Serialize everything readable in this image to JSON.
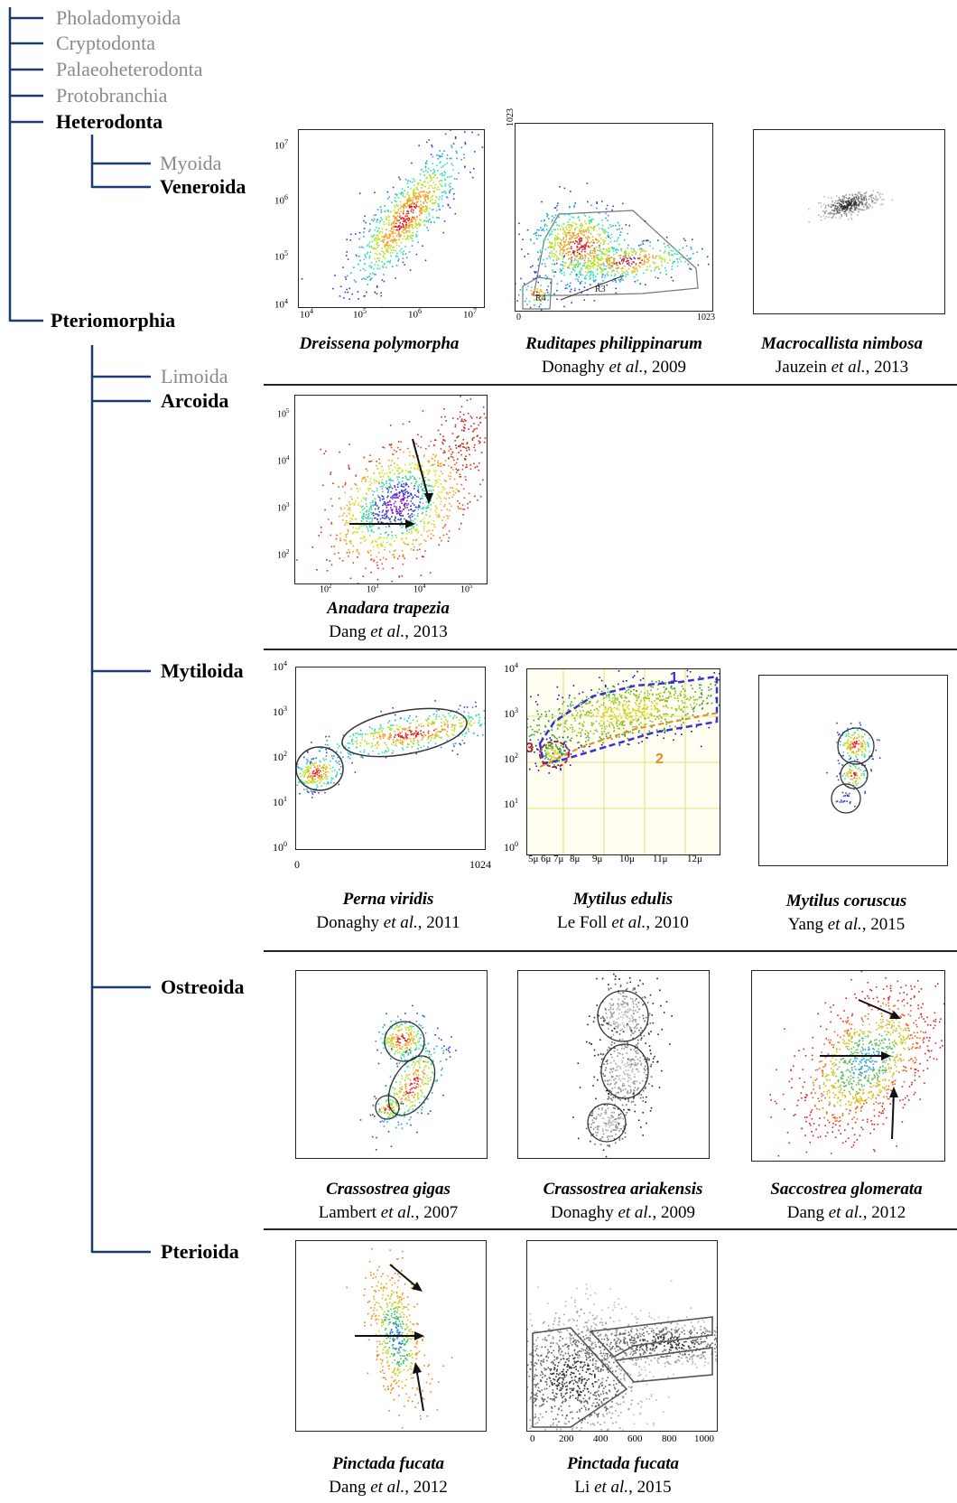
{
  "taxonomy": {
    "pholadomyoida": "Pholadomyoida",
    "cryptodonta": "Cryptodonta",
    "palaeoheterodonta": "Palaeoheterodonta",
    "protobranchia": "Protobranchia",
    "heterodonta": "Heterodonta",
    "myoida": "Myoida",
    "veneroida": "Veneroida",
    "pteriomorphia": "Pteriomorphia",
    "limoida": "Limoida",
    "arcoida": "Arcoida",
    "mytiloida": "Mytiloida",
    "ostreoida": "Ostreoida",
    "pterioida": "Pterioida"
  },
  "colors": {
    "tree_line": "#1f3a6e",
    "minor_text": "#8a8a8a",
    "separator": "#222222"
  },
  "panels": {
    "dreissena": {
      "species": "Dreissena polymorpha",
      "reference_author": "",
      "reference_etal": "",
      "reference_year": "",
      "y_ticks": [
        "10",
        "10",
        "10",
        "10"
      ],
      "y_exp": [
        "7",
        "6",
        "5",
        "4"
      ],
      "x_ticks": [
        "10",
        "10",
        "10",
        "10"
      ],
      "x_exp": [
        "4",
        "5",
        "6",
        "7"
      ]
    },
    "ruditapes": {
      "species": "Ruditapes philippinarum",
      "reference_author": "Donaghy ",
      "reference_etal": "et al.",
      "reference_year": ", 2009",
      "y_max": "1023",
      "x_min": "0",
      "x_max": "1023",
      "gate_labels": [
        "R4",
        "R3"
      ]
    },
    "macrocallista": {
      "species": "Macrocallista nimbosa",
      "reference_author": "Jauzein ",
      "reference_etal": "et al.",
      "reference_year": ", 2013"
    },
    "anadara": {
      "species": "Anadara trapezia",
      "reference_author": "Dang ",
      "reference_etal": "et al.",
      "reference_year": ", 2013",
      "y_ticks": [
        "10",
        "10",
        "10",
        "10"
      ],
      "y_exp": [
        "5",
        "4",
        "3",
        "2"
      ],
      "x_ticks": [
        "10",
        "10",
        "10",
        "10"
      ],
      "x_exp": [
        "2",
        "3",
        "4",
        "5"
      ]
    },
    "perna": {
      "species": "Perna viridis",
      "reference_author": "Donaghy ",
      "reference_etal": "et al.",
      "reference_year": ", 2011",
      "y_ticks": [
        "10",
        "10",
        "10",
        "10",
        "10"
      ],
      "y_exp": [
        "4",
        "3",
        "2",
        "1",
        "0"
      ],
      "x_min": "0",
      "x_max": "1024"
    },
    "mytilus_edulis": {
      "species": "Mytilus edulis",
      "reference_author": "Le Foll ",
      "reference_etal": "et al.",
      "reference_year": ", 2010",
      "y_ticks": [
        "10",
        "10",
        "10",
        "10",
        "10"
      ],
      "y_exp": [
        "4",
        "3",
        "2",
        "1",
        "0"
      ],
      "x_ticks": [
        "5μ",
        "6μ",
        "7μ",
        "8μ",
        "9μ",
        "10μ",
        "11μ",
        "12μ"
      ],
      "gate_labels": [
        "1",
        "2",
        "3"
      ]
    },
    "mytilus_coruscus": {
      "species": "Mytilus coruscus",
      "reference_author": "Yang ",
      "reference_etal": "et al.",
      "reference_year": ", 2015"
    },
    "crassostrea_gigas": {
      "species": "Crassostrea gigas",
      "reference_author": "Lambert ",
      "reference_etal": "et al.",
      "reference_year": ", 2007"
    },
    "crassostrea_ariakensis": {
      "species": "Crassostrea ariakensis",
      "reference_author": "Donaghy ",
      "reference_etal": "et al.",
      "reference_year": ", 2009"
    },
    "saccostrea": {
      "species": "Saccostrea glomerata",
      "reference_author": "Dang ",
      "reference_etal": "et al.",
      "reference_year": ", 2012"
    },
    "pinctada_dang": {
      "species": "Pinctada fucata",
      "reference_author": "Dang ",
      "reference_etal": "et al.",
      "reference_year": ", 2012"
    },
    "pinctada_li": {
      "species": "Pinctada fucata",
      "reference_author": "Li ",
      "reference_etal": "et al.",
      "reference_year": ", 2015",
      "x_ticks": [
        "0",
        "200",
        "400",
        "600",
        "800",
        "1000"
      ]
    }
  }
}
